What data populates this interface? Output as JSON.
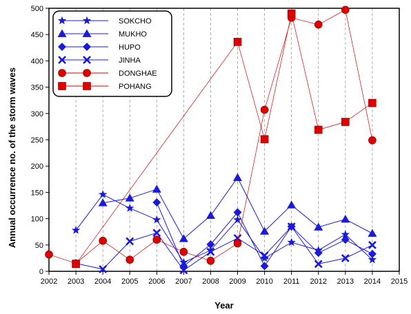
{
  "chart_data": {
    "type": "line",
    "title": "",
    "xlabel": "Year",
    "ylabel": "Annual occurrence no. of the storm waves",
    "xlim": [
      2002,
      2015
    ],
    "ylim": [
      0,
      500
    ],
    "xticks": [
      2002,
      2003,
      2004,
      2005,
      2006,
      2007,
      2008,
      2009,
      2010,
      2011,
      2012,
      2013,
      2014,
      2015
    ],
    "yticks": [
      0,
      50,
      100,
      150,
      200,
      250,
      300,
      350,
      400,
      450,
      500
    ],
    "grid": "vertical dashed at each year",
    "legend_position": "top-left",
    "series": [
      {
        "name": "SOKCHO",
        "marker": "star",
        "color": "#1a1adb",
        "x": [
          2003,
          2004,
          2005,
          2006,
          2007,
          2008,
          2009,
          2010,
          2011,
          2012,
          2013,
          2014
        ],
        "y": [
          78,
          146,
          120,
          98,
          17,
          40,
          98,
          25,
          55,
          40,
          70,
          22
        ]
      },
      {
        "name": "MUKHO",
        "marker": "triangle",
        "color": "#1a1adb",
        "x": [
          2004,
          2005,
          2006,
          2007,
          2008,
          2009,
          2010,
          2011,
          2012,
          2013,
          2014
        ],
        "y": [
          130,
          139,
          156,
          62,
          106,
          178,
          76,
          126,
          84,
          99,
          72
        ]
      },
      {
        "name": "HUPO",
        "marker": "diamond",
        "color": "#1a1adb",
        "x": [
          2006,
          2007,
          2008,
          2009,
          2010,
          2011,
          2012,
          2013,
          2014
        ],
        "y": [
          131,
          10,
          51,
          112,
          10,
          85,
          35,
          60,
          33
        ]
      },
      {
        "name": "JINHA",
        "marker": "x",
        "color": "#1a1adb",
        "x": [
          2003,
          2004,
          2005,
          2006,
          2007,
          2008,
          2009,
          2010,
          2011,
          2012,
          2013,
          2014
        ],
        "y": [
          15,
          4,
          57,
          73,
          2,
          37,
          63,
          30,
          85,
          14,
          25,
          50
        ]
      },
      {
        "name": "DONGHAE",
        "marker": "circle",
        "color": "#e00000",
        "x": [
          2002,
          2003,
          2004,
          2005,
          2006,
          2007,
          2008,
          2009,
          2010,
          2011,
          2012,
          2013,
          2014
        ],
        "y": [
          32,
          15,
          58,
          22,
          60,
          37,
          20,
          53,
          307,
          482,
          469,
          497,
          249
        ]
      },
      {
        "name": "POHANG",
        "marker": "square",
        "color": "#e00000",
        "x": [
          2003,
          2009,
          2010,
          2011,
          2012,
          2013,
          2014
        ],
        "y": [
          14,
          436,
          251,
          490,
          269,
          284,
          320
        ]
      }
    ]
  }
}
